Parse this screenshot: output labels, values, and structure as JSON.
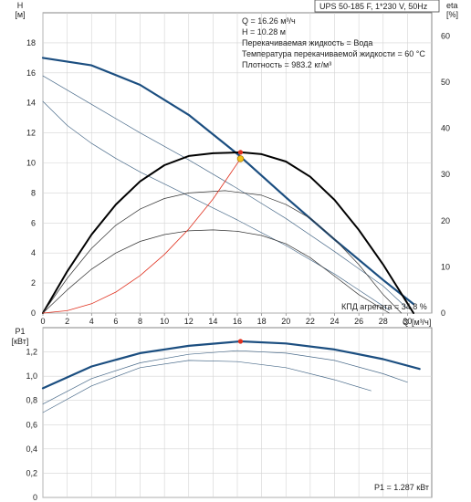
{
  "header": {
    "model": "UPS 50-185 F, 1*230 V, 50Hz"
  },
  "info": {
    "lines": [
      "Q = 16.26 м³/ч",
      "H = 10.28 м",
      "Перекачиваемая жидкость = Вода",
      "Температура перекачиваемой жидкости = 60 °C",
      "Плотность = 983.2 кг/м³"
    ]
  },
  "chart_data": [
    {
      "type": "line",
      "panel": "head-efficiency",
      "y_axis_label": "H",
      "y_axis_unit": "[м]",
      "y2_axis_label": "eta",
      "y2_axis_unit": "[%]",
      "x_axis_label": "Q",
      "x_axis_unit": "[м³/ч]",
      "xlim": [
        0,
        32
      ],
      "ylim": [
        0,
        20
      ],
      "y2lim": [
        0,
        65
      ],
      "x_ticks": [
        "0",
        "2",
        "4",
        "6",
        "8",
        "10",
        "12",
        "14",
        "16",
        "18",
        "20",
        "22",
        "24",
        "26",
        "28",
        "30"
      ],
      "y_ticks": [
        "0",
        "2",
        "4",
        "6",
        "8",
        "10",
        "12",
        "14",
        "16",
        "18"
      ],
      "y2_ticks": [
        "0",
        "10",
        "20",
        "30",
        "40",
        "50",
        "60"
      ],
      "grid": true,
      "series": [
        {
          "role": "head-speed-3",
          "color": "#1b4e80",
          "x": [
            0,
            4,
            8,
            12,
            16,
            20,
            24,
            28,
            30.5
          ],
          "y": [
            17.0,
            16.5,
            15.2,
            13.2,
            10.6,
            7.7,
            4.9,
            2.2,
            0.6
          ]
        },
        {
          "role": "head-speed-2",
          "color": "#4a6b8a",
          "x": [
            0,
            4,
            8,
            12,
            16,
            20,
            24,
            28,
            30
          ],
          "y": [
            15.8,
            13.9,
            12.0,
            10.2,
            8.3,
            6.3,
            4.1,
            1.8,
            0.3
          ]
        },
        {
          "role": "head-speed-1",
          "color": "#4a6b8a",
          "x": [
            0,
            2,
            4,
            6,
            8,
            12,
            16,
            20,
            24,
            28.5
          ],
          "y": [
            14.1,
            12.5,
            11.3,
            10.3,
            9.4,
            7.8,
            6.2,
            4.5,
            2.6,
            0.2
          ]
        },
        {
          "role": "efficiency-speed-3",
          "color": "#000000",
          "x": [
            0,
            2,
            4,
            6,
            8,
            10,
            12,
            14,
            16.3,
            18,
            20,
            22,
            24,
            26,
            28,
            30.5
          ],
          "y": [
            0,
            9,
            17,
            23.5,
            28.5,
            32,
            34,
            34.6,
            34.8,
            34.4,
            32.8,
            29.5,
            24.5,
            18,
            10.5,
            0
          ]
        },
        {
          "role": "efficiency-speed-2",
          "color": "#333333",
          "x": [
            0,
            2,
            4,
            6,
            8,
            10,
            12,
            15,
            18,
            20,
            22,
            24,
            26,
            28,
            29.5
          ],
          "y": [
            0,
            7.5,
            14,
            19,
            22.5,
            24.8,
            26,
            26.5,
            25.5,
            23.5,
            20.5,
            16,
            10.5,
            4,
            0
          ]
        },
        {
          "role": "efficiency-speed-1",
          "color": "#333333",
          "x": [
            0,
            2,
            4,
            6,
            8,
            10,
            12,
            14,
            16,
            18,
            20,
            22,
            24,
            26,
            28.5
          ],
          "y": [
            0,
            5,
            9.5,
            13,
            15.5,
            17,
            17.8,
            18,
            17.7,
            16.8,
            15,
            12,
            8,
            4,
            0
          ]
        },
        {
          "role": "system-curve",
          "color": "#e0301e",
          "x": [
            0,
            2,
            4,
            6,
            8,
            10,
            12,
            14,
            16.26
          ],
          "y": [
            0,
            0.16,
            0.62,
            1.4,
            2.5,
            3.9,
            5.6,
            7.6,
            10.28
          ]
        }
      ],
      "points": [
        {
          "role": "duty-point",
          "x": 16.26,
          "y": 10.28,
          "color": "#f5c518"
        },
        {
          "role": "efficiency-point",
          "x": 16.26,
          "y2": 34.8,
          "color": "#e0301e"
        }
      ],
      "annotation": "КПД агрегата = 34.8 %"
    },
    {
      "type": "line",
      "panel": "power",
      "y_axis_label": "P1",
      "y_axis_unit": "[кВт]",
      "xlim": [
        0,
        32
      ],
      "ylim": [
        0,
        1.4
      ],
      "y_ticks": [
        "0",
        "0,2",
        "0,4",
        "0,6",
        "0,8",
        "1,0",
        "1,2"
      ],
      "grid": true,
      "series": [
        {
          "role": "power-speed-3",
          "color": "#1b4e80",
          "x": [
            0,
            4,
            8,
            12,
            16.26,
            20,
            24,
            28,
            31
          ],
          "y": [
            0.9,
            1.08,
            1.19,
            1.25,
            1.287,
            1.27,
            1.22,
            1.14,
            1.06
          ]
        },
        {
          "role": "power-speed-2",
          "color": "#4a6b8a",
          "x": [
            0,
            4,
            8,
            12,
            16,
            20,
            24,
            28,
            30
          ],
          "y": [
            0.77,
            0.98,
            1.11,
            1.18,
            1.21,
            1.19,
            1.13,
            1.02,
            0.95
          ]
        },
        {
          "role": "power-speed-1",
          "color": "#4a6b8a",
          "x": [
            0,
            4,
            8,
            12,
            16,
            20,
            24,
            27
          ],
          "y": [
            0.7,
            0.92,
            1.07,
            1.13,
            1.12,
            1.07,
            0.97,
            0.88
          ]
        }
      ],
      "points": [
        {
          "role": "power-point",
          "x": 16.26,
          "y": 1.287,
          "color": "#e0301e"
        }
      ],
      "annotation": "P1 = 1.287 кВт"
    }
  ]
}
